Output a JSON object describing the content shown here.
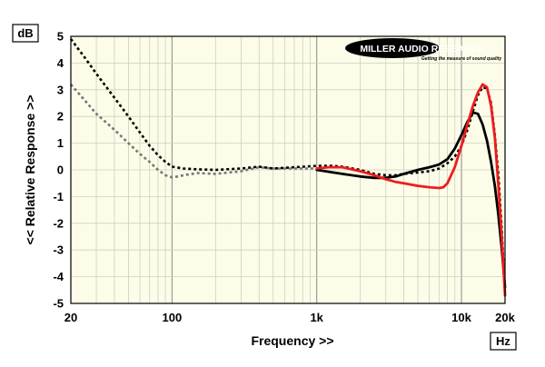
{
  "logo": {
    "name": "MILLER AUDIO RESEARCH",
    "tagline": "Getting the measure of sound quality"
  },
  "chart_data": {
    "type": "line",
    "title": "",
    "xlabel": "Frequency >>",
    "ylabel": "<< Relative Response >>",
    "y_unit": "dB",
    "x_unit": "Hz",
    "x_scale": "log",
    "xlim": [
      20,
      20000
    ],
    "ylim": [
      -5,
      5
    ],
    "grid": true,
    "x_ticks": [
      {
        "value": 20,
        "label": "20"
      },
      {
        "value": 100,
        "label": "100"
      },
      {
        "value": 1000,
        "label": "1k"
      },
      {
        "value": 10000,
        "label": "10k"
      },
      {
        "value": 20000,
        "label": "20k"
      }
    ],
    "y_ticks": [
      5,
      4,
      3,
      2,
      1,
      0,
      -1,
      -2,
      -3,
      -4,
      -5
    ],
    "series": [
      {
        "color": "#777777",
        "style": "dotted",
        "x": [
          20,
          25,
          30,
          40,
          50,
          60,
          70,
          80,
          90,
          100,
          110,
          120,
          150,
          200,
          300,
          400,
          500,
          700,
          1000
        ],
        "y": [
          3.2,
          2.6,
          2.1,
          1.5,
          1.0,
          0.6,
          0.3,
          0.0,
          -0.2,
          -0.28,
          -0.25,
          -0.2,
          -0.12,
          -0.15,
          -0.05,
          0.1,
          0.05,
          0.05,
          0.05
        ]
      },
      {
        "color": "#000000",
        "style": "dotted",
        "x": [
          20,
          25,
          30,
          40,
          50,
          60,
          70,
          80,
          90,
          100,
          120,
          150,
          200,
          300,
          400,
          500,
          700,
          1000,
          1300,
          1500,
          2000,
          2500,
          3000,
          3500,
          4000,
          5000,
          6000,
          7000,
          8000,
          9000,
          10000,
          11000,
          12000,
          13000,
          14000,
          15000,
          16000,
          17000,
          18000,
          19000,
          20000
        ],
        "y": [
          4.9,
          4.2,
          3.6,
          2.7,
          2.0,
          1.4,
          0.9,
          0.55,
          0.3,
          0.12,
          0.05,
          0.02,
          0.0,
          0.05,
          0.12,
          0.05,
          0.1,
          0.15,
          0.15,
          0.12,
          0.0,
          -0.15,
          -0.2,
          -0.2,
          -0.15,
          -0.1,
          -0.05,
          0.05,
          0.25,
          0.5,
          0.9,
          1.5,
          2.2,
          2.8,
          3.1,
          3.05,
          2.5,
          1.3,
          -0.2,
          -2.3,
          -4.7
        ]
      },
      {
        "color": "#000000",
        "style": "solid",
        "x": [
          1000,
          1300,
          1500,
          2000,
          2500,
          3000,
          3500,
          4000,
          5000,
          6000,
          7000,
          8000,
          9000,
          10000,
          11000,
          12000,
          13000,
          14000,
          15000,
          16000,
          17000,
          18000,
          19000,
          20000
        ],
        "y": [
          0.0,
          -0.1,
          -0.15,
          -0.25,
          -0.3,
          -0.3,
          -0.25,
          -0.15,
          0.0,
          0.1,
          0.2,
          0.4,
          0.8,
          1.3,
          1.8,
          2.15,
          2.1,
          1.7,
          1.1,
          0.3,
          -0.6,
          -1.7,
          -3.0,
          -4.4
        ]
      },
      {
        "color": "#ee1c1c",
        "style": "solid",
        "x": [
          1000,
          1200,
          1500,
          2000,
          2500,
          3000,
          3500,
          4000,
          5000,
          6000,
          7000,
          7500,
          8000,
          9000,
          10000,
          11000,
          12000,
          13000,
          14000,
          15000,
          16000,
          17000,
          18000,
          19000,
          20000
        ],
        "y": [
          0.05,
          0.1,
          0.1,
          -0.05,
          -0.2,
          -0.35,
          -0.45,
          -0.5,
          -0.6,
          -0.65,
          -0.68,
          -0.65,
          -0.5,
          0.1,
          0.9,
          1.7,
          2.4,
          2.9,
          3.2,
          3.1,
          2.4,
          1.2,
          -0.6,
          -2.6,
          -4.7
        ]
      }
    ]
  }
}
